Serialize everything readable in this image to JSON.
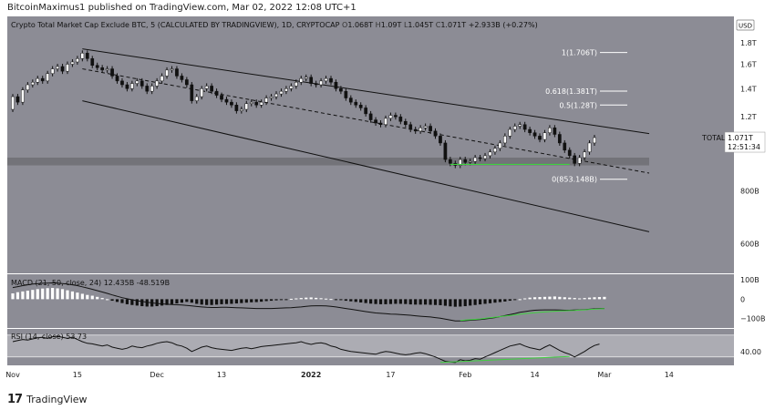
{
  "header": {
    "text": "BitcoinMaximus1 published on TradingView.com, Mar 02, 2022 12:08 UTC+1"
  },
  "footer": {
    "brand": "TradingView",
    "logo_glyph": "17"
  },
  "colors": {
    "background": "#8c8c95",
    "axis_bg": "#ffffff",
    "channel": "#111111",
    "candle_up": "#ffffff",
    "candle_down": "#111111",
    "support_zone": "#6e6e74",
    "green": "#3fd13f",
    "fib": "#ffffff",
    "macd_line": "#111111",
    "signal_line": "#3fd13f",
    "rsi_band": "#b4b4ba",
    "price_label_bg": "#ffffff"
  },
  "chart_data": {
    "type": "candlestick",
    "title": "Crypto Total Market Cap Exclude BTC, 5 (CALCULATED BY TRADINGVIEW), 1D, CRYPTOCAP",
    "ohlc_legend": {
      "o": "1.068T",
      "h": "1.09T",
      "l": "1.045T",
      "c": "1.071T",
      "chg": "+2.933B (+0.27%)"
    },
    "currency_button": "USD",
    "symbol_label": "TOTAL2",
    "last_price_label": "1.071T",
    "countdown_label": "12:51:34",
    "x_ticks": [
      "Nov",
      "15",
      "Dec",
      "13",
      "2022",
      "17",
      "Feb",
      "14",
      "Mar",
      "14"
    ],
    "y_ticks": [
      "1.8T",
      "1.6T",
      "1.4T",
      "1.2T",
      "800B",
      "600B"
    ],
    "y_range": [
      520,
      1900
    ],
    "y_scale": "log",
    "fib_levels": [
      {
        "ratio": "1",
        "label": "1(1.706T)",
        "value": 1706
      },
      {
        "ratio": "0.618",
        "label": "0.618(1.381T)",
        "value": 1381
      },
      {
        "ratio": "0.5",
        "label": "0.5(1.28T)",
        "value": 1280
      },
      {
        "ratio": "0",
        "label": "0(853.148B)",
        "value": 853
      }
    ],
    "support_zone": {
      "low": 920,
      "high": 960
    },
    "candles": [
      [
        1250,
        1340
      ],
      [
        1340,
        1300
      ],
      [
        1300,
        1390
      ],
      [
        1390,
        1430
      ],
      [
        1430,
        1450
      ],
      [
        1450,
        1480
      ],
      [
        1480,
        1460
      ],
      [
        1460,
        1520
      ],
      [
        1520,
        1560
      ],
      [
        1560,
        1580
      ],
      [
        1580,
        1540
      ],
      [
        1540,
        1600
      ],
      [
        1600,
        1620
      ],
      [
        1620,
        1650
      ],
      [
        1650,
        1700
      ],
      [
        1700,
        1650
      ],
      [
        1650,
        1590
      ],
      [
        1590,
        1570
      ],
      [
        1570,
        1550
      ],
      [
        1550,
        1560
      ],
      [
        1560,
        1500
      ],
      [
        1500,
        1460
      ],
      [
        1460,
        1430
      ],
      [
        1430,
        1400
      ],
      [
        1400,
        1440
      ],
      [
        1440,
        1460
      ],
      [
        1460,
        1420
      ],
      [
        1420,
        1380
      ],
      [
        1380,
        1420
      ],
      [
        1420,
        1460
      ],
      [
        1460,
        1500
      ],
      [
        1500,
        1550
      ],
      [
        1550,
        1560
      ],
      [
        1560,
        1500
      ],
      [
        1500,
        1470
      ],
      [
        1470,
        1430
      ],
      [
        1430,
        1310
      ],
      [
        1310,
        1340
      ],
      [
        1340,
        1400
      ],
      [
        1400,
        1420
      ],
      [
        1420,
        1380
      ],
      [
        1380,
        1350
      ],
      [
        1350,
        1320
      ],
      [
        1320,
        1300
      ],
      [
        1300,
        1280
      ],
      [
        1280,
        1240
      ],
      [
        1240,
        1250
      ],
      [
        1250,
        1290
      ],
      [
        1290,
        1300
      ],
      [
        1300,
        1280
      ],
      [
        1280,
        1300
      ],
      [
        1300,
        1330
      ],
      [
        1330,
        1340
      ],
      [
        1340,
        1360
      ],
      [
        1360,
        1380
      ],
      [
        1380,
        1400
      ],
      [
        1400,
        1420
      ],
      [
        1420,
        1450
      ],
      [
        1450,
        1480
      ],
      [
        1480,
        1490
      ],
      [
        1490,
        1440
      ],
      [
        1440,
        1430
      ],
      [
        1430,
        1460
      ],
      [
        1460,
        1480
      ],
      [
        1480,
        1450
      ],
      [
        1450,
        1400
      ],
      [
        1400,
        1380
      ],
      [
        1380,
        1330
      ],
      [
        1330,
        1300
      ],
      [
        1300,
        1280
      ],
      [
        1280,
        1260
      ],
      [
        1260,
        1220
      ],
      [
        1220,
        1180
      ],
      [
        1180,
        1160
      ],
      [
        1160,
        1150
      ],
      [
        1150,
        1190
      ],
      [
        1190,
        1210
      ],
      [
        1210,
        1200
      ],
      [
        1200,
        1170
      ],
      [
        1170,
        1150
      ],
      [
        1150,
        1120
      ],
      [
        1120,
        1110
      ],
      [
        1110,
        1130
      ],
      [
        1130,
        1140
      ],
      [
        1140,
        1110
      ],
      [
        1110,
        1080
      ],
      [
        1080,
        1040
      ],
      [
        1040,
        950
      ],
      [
        950,
        930
      ],
      [
        930,
        920
      ],
      [
        920,
        950
      ],
      [
        950,
        935
      ],
      [
        935,
        940
      ],
      [
        940,
        960
      ],
      [
        960,
        955
      ],
      [
        955,
        970
      ],
      [
        970,
        990
      ],
      [
        990,
        1010
      ],
      [
        1010,
        1040
      ],
      [
        1040,
        1080
      ],
      [
        1080,
        1120
      ],
      [
        1120,
        1140
      ],
      [
        1140,
        1150
      ],
      [
        1150,
        1120
      ],
      [
        1120,
        1100
      ],
      [
        1100,
        1080
      ],
      [
        1080,
        1060
      ],
      [
        1060,
        1100
      ],
      [
        1100,
        1130
      ],
      [
        1130,
        1090
      ],
      [
        1090,
        1040
      ],
      [
        1040,
        1000
      ],
      [
        1000,
        970
      ],
      [
        970,
        930
      ],
      [
        930,
        960
      ],
      [
        960,
        990
      ],
      [
        990,
        1040
      ],
      [
        1040,
        1071
      ]
    ],
    "macd": {
      "label": "MACD (21, 50, close, 24)",
      "value1": "12.435B",
      "value2": "-48.519B",
      "y_ticks": [
        "100B",
        "0",
        "−100B"
      ],
      "y_range": [
        -130,
        110
      ],
      "histogram": [
        30,
        36,
        40,
        44,
        48,
        52,
        55,
        57,
        58,
        56,
        52,
        46,
        40,
        34,
        28,
        22,
        18,
        12,
        6,
        0,
        -8,
        -14,
        -20,
        -26,
        -30,
        -33,
        -36,
        -38,
        -38,
        -36,
        -33,
        -30,
        -26,
        -22,
        -18,
        -14,
        -18,
        -24,
        -28,
        -30,
        -30,
        -28,
        -26,
        -25,
        -24,
        -22,
        -20,
        -18,
        -16,
        -15,
        -13,
        -10,
        -8,
        -6,
        -3,
        -1,
        2,
        4,
        6,
        8,
        9,
        7,
        5,
        3,
        1,
        -2,
        -5,
        -8,
        -11,
        -14,
        -17,
        -20,
        -23,
        -25,
        -26,
        -26,
        -25,
        -24,
        -24,
        -25,
        -27,
        -28,
        -28,
        -28,
        -29,
        -30,
        -31,
        -34,
        -37,
        -39,
        -38,
        -36,
        -33,
        -30,
        -27,
        -24,
        -21,
        -18,
        -15,
        -12,
        -8,
        -4,
        0,
        4,
        8,
        10,
        11,
        12,
        13,
        14,
        12,
        10,
        8,
        6,
        4,
        6,
        8,
        10,
        11,
        12
      ],
      "macd_line": [
        60,
        65,
        70,
        74,
        78,
        80,
        82,
        83,
        84,
        83,
        81,
        78,
        74,
        70,
        64,
        58,
        51,
        44,
        37,
        30,
        22,
        15,
        8,
        2,
        -3,
        -8,
        -12,
        -16,
        -19,
        -22,
        -24,
        -26,
        -28,
        -29,
        -30,
        -32,
        -35,
        -38,
        -40,
        -42,
        -43,
        -43,
        -42,
        -42,
        -43,
        -44,
        -45,
        -46,
        -47,
        -48,
        -48,
        -48,
        -48,
        -47,
        -46,
        -45,
        -44,
        -42,
        -40,
        -37,
        -35,
        -34,
        -34,
        -35,
        -37,
        -40,
        -44,
        -48,
        -52,
        -56,
        -60,
        -64,
        -68,
        -71,
        -73,
        -75,
        -77,
        -78,
        -79,
        -81,
        -83,
        -86,
        -88,
        -90,
        -92,
        -95,
        -98,
        -103,
        -108,
        -112,
        -112,
        -111,
        -109,
        -107,
        -105,
        -102,
        -99,
        -95,
        -90,
        -85,
        -79,
        -74,
        -68,
        -64,
        -60,
        -57,
        -56,
        -55,
        -55,
        -55,
        -56,
        -57,
        -57,
        -56,
        -55,
        -54,
        -52,
        -50,
        -48,
        -48
      ],
      "signal_line": [
        null,
        null,
        null,
        null,
        null,
        null,
        null,
        null,
        null,
        null,
        null,
        null,
        null,
        null,
        null,
        null,
        null,
        null,
        null,
        null,
        null,
        null,
        null,
        null,
        null,
        null,
        null,
        null,
        null,
        null,
        null,
        null,
        null,
        null,
        null,
        null,
        null,
        null,
        null,
        null,
        null,
        null,
        null,
        null,
        null,
        null,
        null,
        null,
        null,
        null,
        null,
        null,
        null,
        null,
        null,
        null,
        null,
        null,
        null,
        null,
        null,
        null,
        null,
        null,
        null,
        null,
        null,
        null,
        null,
        null,
        null,
        null,
        null,
        null,
        null,
        null,
        null,
        null,
        null,
        null,
        null,
        null,
        null,
        null,
        null,
        null,
        null,
        null,
        null,
        null,
        -110,
        -108,
        -106,
        -104,
        -102,
        -99,
        -96,
        -93,
        -90,
        -87,
        -84,
        -81,
        -78,
        -75,
        -72,
        -70,
        -68,
        -66,
        -64,
        -62,
        -61,
        -60,
        -59,
        -58,
        -56,
        -55,
        -53,
        -52,
        -50,
        -49
      ]
    },
    "rsi": {
      "label": "RSI (14, close)",
      "value": "53.73",
      "y_ticks": [
        "40.00"
      ],
      "y_range": [
        18,
        78
      ],
      "band": [
        30,
        70
      ],
      "values": [
        58,
        60,
        62,
        61,
        63,
        65,
        66,
        64,
        67,
        68,
        66,
        64,
        66,
        62,
        58,
        55,
        54,
        52,
        50,
        52,
        48,
        46,
        44,
        46,
        50,
        48,
        47,
        50,
        52,
        55,
        57,
        58,
        56,
        52,
        50,
        46,
        40,
        44,
        48,
        50,
        47,
        45,
        44,
        43,
        42,
        44,
        46,
        47,
        45,
        47,
        49,
        50,
        51,
        52,
        53,
        54,
        55,
        56,
        58,
        55,
        53,
        55,
        56,
        54,
        50,
        48,
        44,
        42,
        40,
        39,
        38,
        37,
        36,
        35,
        38,
        40,
        39,
        37,
        35,
        34,
        35,
        37,
        38,
        36,
        33,
        30,
        26,
        22,
        21,
        20,
        25,
        23,
        24,
        27,
        26,
        30,
        34,
        38,
        42,
        46,
        50,
        52,
        54,
        50,
        47,
        45,
        43,
        48,
        52,
        47,
        42,
        38,
        35,
        30,
        35,
        40,
        46,
        51,
        53.73
      ]
    }
  }
}
